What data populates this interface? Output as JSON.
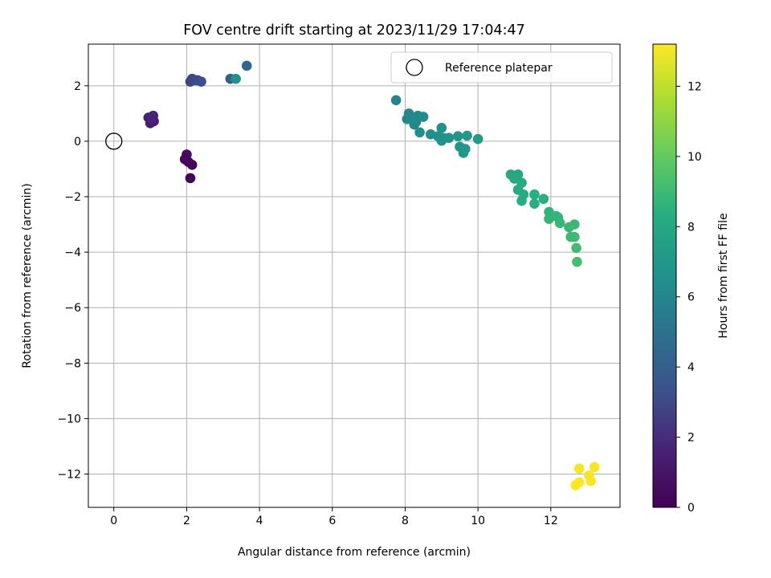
{
  "chart_data": {
    "type": "scatter",
    "title": "FOV centre drift starting at 2023/11/29 17:04:47",
    "xlabel": "Angular distance from reference (arcmin)",
    "ylabel": "Rotation from reference (arcmin)",
    "xlim": [
      -0.7,
      13.9
    ],
    "ylim": [
      -13.2,
      3.5
    ],
    "xticks": [
      0,
      2,
      4,
      6,
      8,
      10,
      12
    ],
    "xtick_labels": [
      "0",
      "2",
      "4",
      "6",
      "8",
      "10",
      "12"
    ],
    "yticks": [
      2,
      0,
      -2,
      -4,
      -6,
      -8,
      -10,
      -12
    ],
    "ytick_labels": [
      "2",
      "0",
      "−2",
      "−4",
      "−6",
      "−8",
      "−10",
      "−12"
    ],
    "grid": true,
    "legend_position": "top-right",
    "reference": {
      "name": "Reference platepar",
      "x": 0.0,
      "y": 0.0
    },
    "colorbar": {
      "label": "Hours from first FF file",
      "range": [
        0,
        13.2
      ],
      "ticks": [
        0,
        2,
        4,
        6,
        8,
        10,
        12
      ],
      "tick_labels": [
        "0",
        "2",
        "4",
        "6",
        "8",
        "10",
        "12"
      ],
      "colormap": "viridis"
    },
    "points": [
      {
        "x": 2.1,
        "y": -1.33,
        "c": 0.2
      },
      {
        "x": 2.15,
        "y": -0.85,
        "c": 0.3
      },
      {
        "x": 1.95,
        "y": -0.65,
        "c": 0.35
      },
      {
        "x": 2.05,
        "y": -0.75,
        "c": 0.4
      },
      {
        "x": 2.0,
        "y": -0.48,
        "c": 0.45
      },
      {
        "x": 1.0,
        "y": 0.65,
        "c": 1.4
      },
      {
        "x": 1.1,
        "y": 0.72,
        "c": 1.5
      },
      {
        "x": 0.95,
        "y": 0.85,
        "c": 1.55
      },
      {
        "x": 1.05,
        "y": 0.8,
        "c": 1.6
      },
      {
        "x": 1.08,
        "y": 0.92,
        "c": 1.7
      },
      {
        "x": 2.1,
        "y": 2.15,
        "c": 2.8
      },
      {
        "x": 2.15,
        "y": 2.25,
        "c": 2.9
      },
      {
        "x": 2.25,
        "y": 2.2,
        "c": 3.0
      },
      {
        "x": 2.3,
        "y": 2.2,
        "c": 3.1
      },
      {
        "x": 2.4,
        "y": 2.15,
        "c": 3.2
      },
      {
        "x": 3.2,
        "y": 2.25,
        "c": 4.0
      },
      {
        "x": 3.65,
        "y": 2.72,
        "c": 4.3
      },
      {
        "x": 3.35,
        "y": 2.25,
        "c": 6.6
      },
      {
        "x": 7.75,
        "y": 1.48,
        "c": 5.9
      },
      {
        "x": 8.05,
        "y": 0.8,
        "c": 6.0
      },
      {
        "x": 8.1,
        "y": 1.0,
        "c": 6.05
      },
      {
        "x": 8.2,
        "y": 0.85,
        "c": 6.1
      },
      {
        "x": 8.3,
        "y": 0.7,
        "c": 6.15
      },
      {
        "x": 8.25,
        "y": 0.6,
        "c": 6.2
      },
      {
        "x": 8.35,
        "y": 0.92,
        "c": 6.25
      },
      {
        "x": 8.5,
        "y": 0.88,
        "c": 6.3
      },
      {
        "x": 8.4,
        "y": 0.32,
        "c": 6.4
      },
      {
        "x": 8.7,
        "y": 0.25,
        "c": 6.5
      },
      {
        "x": 8.9,
        "y": 0.18,
        "c": 6.55
      },
      {
        "x": 9.0,
        "y": 0.48,
        "c": 6.6
      },
      {
        "x": 9.05,
        "y": 0.12,
        "c": 6.65
      },
      {
        "x": 9.0,
        "y": 0.02,
        "c": 6.7
      },
      {
        "x": 9.2,
        "y": 0.12,
        "c": 6.75
      },
      {
        "x": 9.45,
        "y": 0.18,
        "c": 6.8
      },
      {
        "x": 9.5,
        "y": -0.2,
        "c": 6.85
      },
      {
        "x": 9.6,
        "y": -0.42,
        "c": 6.9
      },
      {
        "x": 9.65,
        "y": -0.28,
        "c": 6.95
      },
      {
        "x": 9.7,
        "y": 0.2,
        "c": 7.0
      },
      {
        "x": 10.0,
        "y": 0.08,
        "c": 7.1
      },
      {
        "x": 10.9,
        "y": -1.2,
        "c": 8.0
      },
      {
        "x": 11.0,
        "y": -1.35,
        "c": 8.05
      },
      {
        "x": 11.1,
        "y": -1.2,
        "c": 8.1
      },
      {
        "x": 11.2,
        "y": -1.5,
        "c": 8.15
      },
      {
        "x": 11.1,
        "y": -1.75,
        "c": 8.2
      },
      {
        "x": 11.25,
        "y": -1.92,
        "c": 8.25
      },
      {
        "x": 11.2,
        "y": -2.15,
        "c": 8.3
      },
      {
        "x": 11.55,
        "y": -1.92,
        "c": 8.35
      },
      {
        "x": 11.55,
        "y": -2.25,
        "c": 8.4
      },
      {
        "x": 11.8,
        "y": -2.08,
        "c": 8.45
      },
      {
        "x": 11.95,
        "y": -2.55,
        "c": 8.6
      },
      {
        "x": 11.95,
        "y": -2.8,
        "c": 8.65
      },
      {
        "x": 12.15,
        "y": -2.7,
        "c": 8.7
      },
      {
        "x": 12.2,
        "y": -2.75,
        "c": 8.75
      },
      {
        "x": 12.25,
        "y": -2.95,
        "c": 8.8
      },
      {
        "x": 12.5,
        "y": -3.1,
        "c": 8.85
      },
      {
        "x": 12.65,
        "y": -3.0,
        "c": 8.9
      },
      {
        "x": 12.55,
        "y": -3.45,
        "c": 8.95
      },
      {
        "x": 12.65,
        "y": -3.45,
        "c": 9.0
      },
      {
        "x": 12.7,
        "y": -3.85,
        "c": 9.1
      },
      {
        "x": 12.72,
        "y": -4.35,
        "c": 9.2
      },
      {
        "x": 12.78,
        "y": -11.8,
        "c": 13.0
      },
      {
        "x": 13.05,
        "y": -12.05,
        "c": 13.05
      },
      {
        "x": 13.2,
        "y": -11.75,
        "c": 13.1
      },
      {
        "x": 13.1,
        "y": -12.25,
        "c": 13.12
      },
      {
        "x": 12.78,
        "y": -12.3,
        "c": 13.15
      },
      {
        "x": 12.68,
        "y": -12.4,
        "c": 13.2
      }
    ]
  }
}
